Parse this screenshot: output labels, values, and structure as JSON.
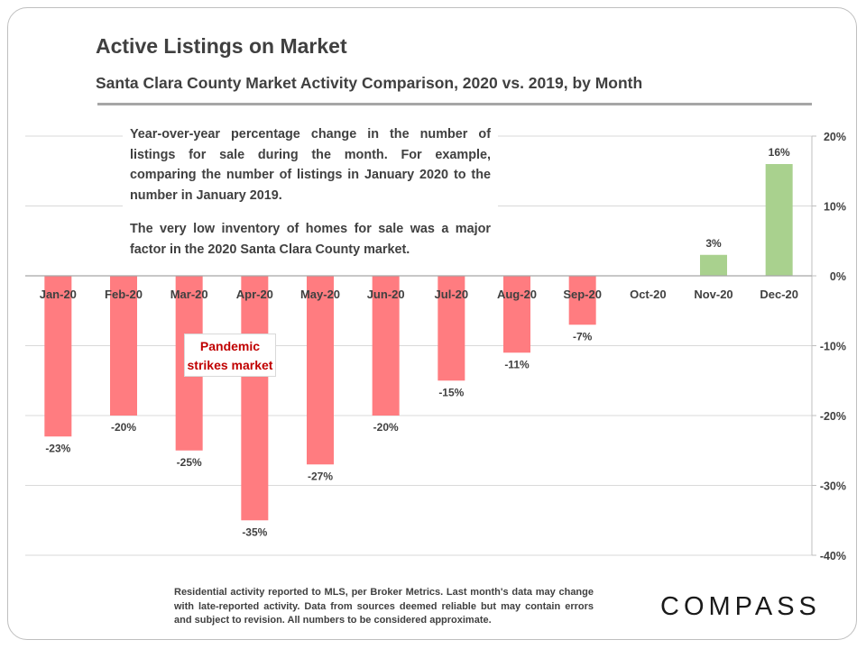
{
  "title": "Active Listings on Market",
  "subtitle": "Santa Clara County Market Activity Comparison,  2020 vs. 2019, by Month",
  "note_p1": "Year-over-year percentage change in the number of listings for sale during the month. For example, comparing the number of listings in January 2020 to the number in January 2019.",
  "note_p2": "The very low inventory of homes for sale was a major factor in the 2020 Santa Clara County market.",
  "callout": "Pandemic strikes market",
  "footer": "Residential activity reported to MLS, per Broker Metrics. Last month's data may change with late-reported activity. Data from sources deemed reliable but may contain errors and subject to revision. All numbers to be considered approximate.",
  "logo": "COMPASS",
  "colors": {
    "negative": "#ff7c80",
    "positive": "#a9d18e"
  },
  "chart_data": {
    "type": "bar",
    "categories": [
      "Jan-20",
      "Feb-20",
      "Mar-20",
      "Apr-20",
      "May-20",
      "Jun-20",
      "Jul-20",
      "Aug-20",
      "Sep-20",
      "Oct-20",
      "Nov-20",
      "Dec-20"
    ],
    "values": [
      -23,
      -20,
      -25,
      -35,
      -27,
      -20,
      -15,
      -11,
      -7,
      0,
      3,
      16
    ],
    "value_labels": [
      "-23%",
      "-20%",
      "-25%",
      "-35%",
      "-27%",
      "-20%",
      "-15%",
      "-11%",
      "-7%",
      "",
      "3%",
      "16%"
    ],
    "ylim": [
      -40,
      20
    ],
    "yticks": [
      20,
      10,
      0,
      -10,
      -20,
      -30,
      -40
    ],
    "ytick_labels": [
      "20%",
      "10%",
      "0%",
      "-10%",
      "-20%",
      "-30%",
      "-40%"
    ],
    "grid": true,
    "y_axis_side": "right"
  }
}
